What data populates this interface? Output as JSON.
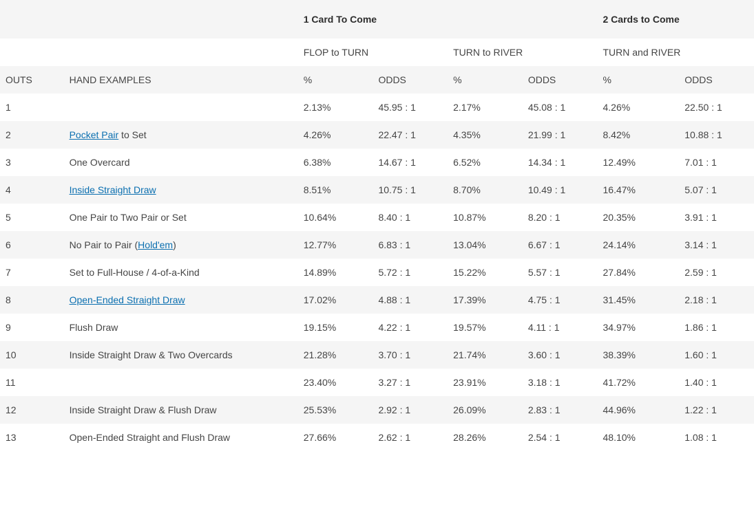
{
  "colors": {
    "text": "#454545",
    "link": "#0b6fb0",
    "rowAlt": "#f5f5f5",
    "rowBase": "#ffffff"
  },
  "sections": {
    "oneCard": "1 Card To Come",
    "twoCards": "2 Cards to Come"
  },
  "subheaders": {
    "flopToTurn": "FLOP to TURN",
    "turnToRiver": "TURN to RIVER",
    "turnAndRiver": "TURN and RIVER"
  },
  "columns": {
    "outs": "OUTS",
    "hand": "HAND EXAMPLES",
    "pct": "%",
    "odds": "ODDS"
  },
  "handText": {
    "r1": "",
    "r2a": "Pocket Pair",
    "r2b": " to Set",
    "r3": "One Overcard",
    "r4a": "Inside Straight Draw",
    "r5": "One Pair to Two Pair or Set",
    "r6a": "No Pair to Pair (",
    "r6b": "Hold'em",
    "r6c": ")",
    "r7": "Set to Full-House / 4-of-a-Kind",
    "r8a": "Open-Ended Straight Draw",
    "r9": "Flush Draw",
    "r10": "Inside Straight Draw & Two Overcards",
    "r11": "",
    "r12": "Inside Straight Draw & Flush Draw",
    "r13": "Open-Ended Straight and Flush Draw"
  },
  "rows": [
    {
      "outs": "1",
      "p1": "2.13%",
      "o1": "45.95 : 1",
      "p2": "2.17%",
      "o2": "45.08 : 1",
      "p3": "4.26%",
      "o3": "22.50 : 1"
    },
    {
      "outs": "2",
      "p1": "4.26%",
      "o1": "22.47 : 1",
      "p2": "4.35%",
      "o2": "21.99 : 1",
      "p3": "8.42%",
      "o3": "10.88 : 1"
    },
    {
      "outs": "3",
      "p1": "6.38%",
      "o1": "14.67 : 1",
      "p2": "6.52%",
      "o2": "14.34 : 1",
      "p3": "12.49%",
      "o3": "7.01 : 1"
    },
    {
      "outs": "4",
      "p1": "8.51%",
      "o1": "10.75 : 1",
      "p2": "8.70%",
      "o2": "10.49 : 1",
      "p3": "16.47%",
      "o3": "5.07 : 1"
    },
    {
      "outs": "5",
      "p1": "10.64%",
      "o1": "8.40 : 1",
      "p2": "10.87%",
      "o2": "8.20 : 1",
      "p3": "20.35%",
      "o3": "3.91 : 1"
    },
    {
      "outs": "6",
      "p1": "12.77%",
      "o1": "6.83 : 1",
      "p2": "13.04%",
      "o2": "6.67 : 1",
      "p3": "24.14%",
      "o3": "3.14 : 1"
    },
    {
      "outs": "7",
      "p1": "14.89%",
      "o1": "5.72 : 1",
      "p2": "15.22%",
      "o2": "5.57 : 1",
      "p3": "27.84%",
      "o3": "2.59 : 1"
    },
    {
      "outs": "8",
      "p1": "17.02%",
      "o1": "4.88 : 1",
      "p2": "17.39%",
      "o2": "4.75 : 1",
      "p3": "31.45%",
      "o3": "2.18 : 1"
    },
    {
      "outs": "9",
      "p1": "19.15%",
      "o1": "4.22 : 1",
      "p2": "19.57%",
      "o2": "4.11 : 1",
      "p3": "34.97%",
      "o3": "1.86 : 1"
    },
    {
      "outs": "10",
      "p1": "21.28%",
      "o1": "3.70 : 1",
      "p2": "21.74%",
      "o2": "3.60 : 1",
      "p3": "38.39%",
      "o3": "1.60 : 1"
    },
    {
      "outs": "11",
      "p1": "23.40%",
      "o1": "3.27 : 1",
      "p2": "23.91%",
      "o2": "3.18 : 1",
      "p3": "41.72%",
      "o3": "1.40 : 1"
    },
    {
      "outs": "12",
      "p1": "25.53%",
      "o1": "2.92 : 1",
      "p2": "26.09%",
      "o2": "2.83 : 1",
      "p3": "44.96%",
      "o3": "1.22 : 1"
    },
    {
      "outs": "13",
      "p1": "27.66%",
      "o1": "2.62 : 1",
      "p2": "28.26%",
      "o2": "2.54 : 1",
      "p3": "48.10%",
      "o3": "1.08 : 1"
    }
  ]
}
